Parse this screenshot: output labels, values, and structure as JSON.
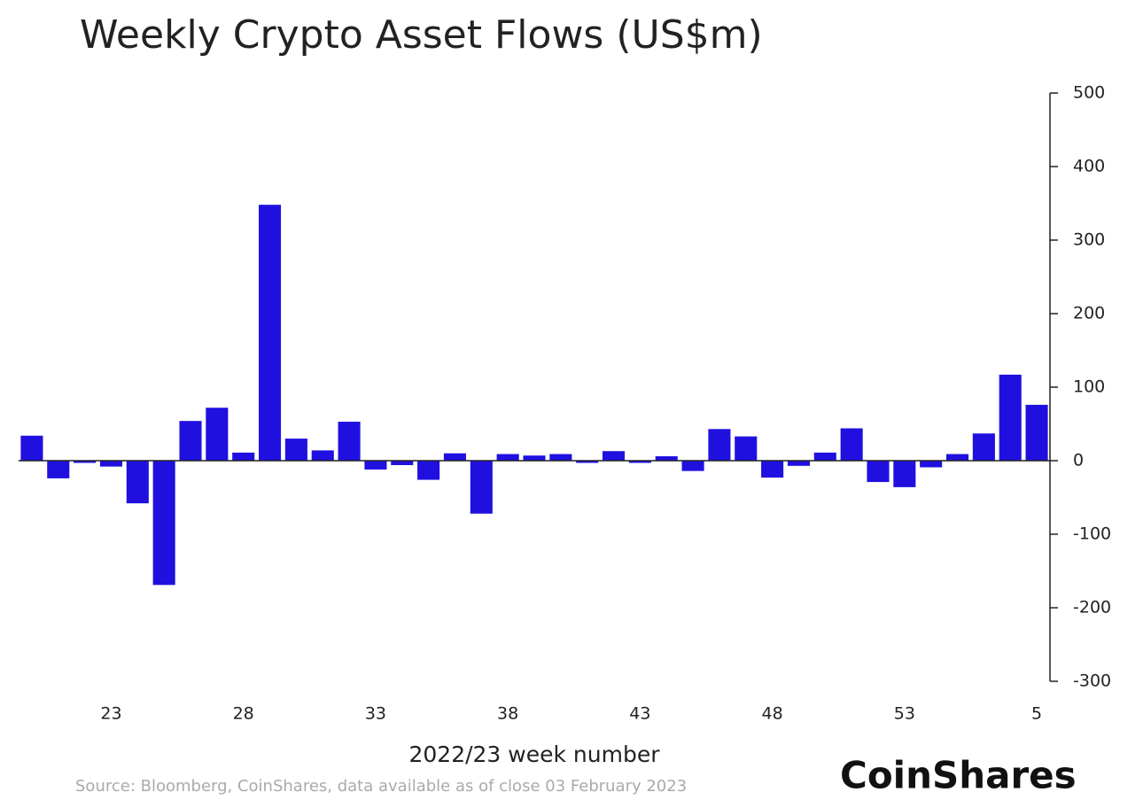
{
  "chart_data": {
    "type": "bar",
    "title": "Weekly Crypto Asset Flows (US$m)",
    "x_label": "2022/23 week number",
    "source": "Source: Bloomberg, CoinShares, data available as of close 03 February 2023",
    "brand": "CoinShares",
    "categories": [
      null,
      null,
      null,
      "23",
      null,
      null,
      null,
      null,
      "28",
      null,
      null,
      null,
      null,
      "33",
      null,
      null,
      null,
      null,
      "38",
      null,
      null,
      null,
      null,
      "43",
      null,
      null,
      null,
      null,
      "48",
      null,
      null,
      null,
      null,
      "53",
      null,
      null,
      null,
      null,
      "5"
    ],
    "values": [
      34,
      -24,
      -3,
      -8,
      -58,
      -169,
      54,
      72,
      11,
      348,
      30,
      14,
      53,
      -12,
      -6,
      -26,
      10,
      -72,
      9,
      7,
      9,
      -3,
      13,
      -3,
      6,
      -14,
      43,
      33,
      -23,
      -7,
      11,
      44,
      -29,
      -36,
      -9,
      9,
      37,
      117,
      76
    ],
    "color": "#1f10e0",
    "ylim": [
      -300,
      500
    ],
    "yticks": [
      500,
      400,
      300,
      200,
      100,
      0,
      -100,
      -200,
      -300
    ],
    "grid": false
  }
}
